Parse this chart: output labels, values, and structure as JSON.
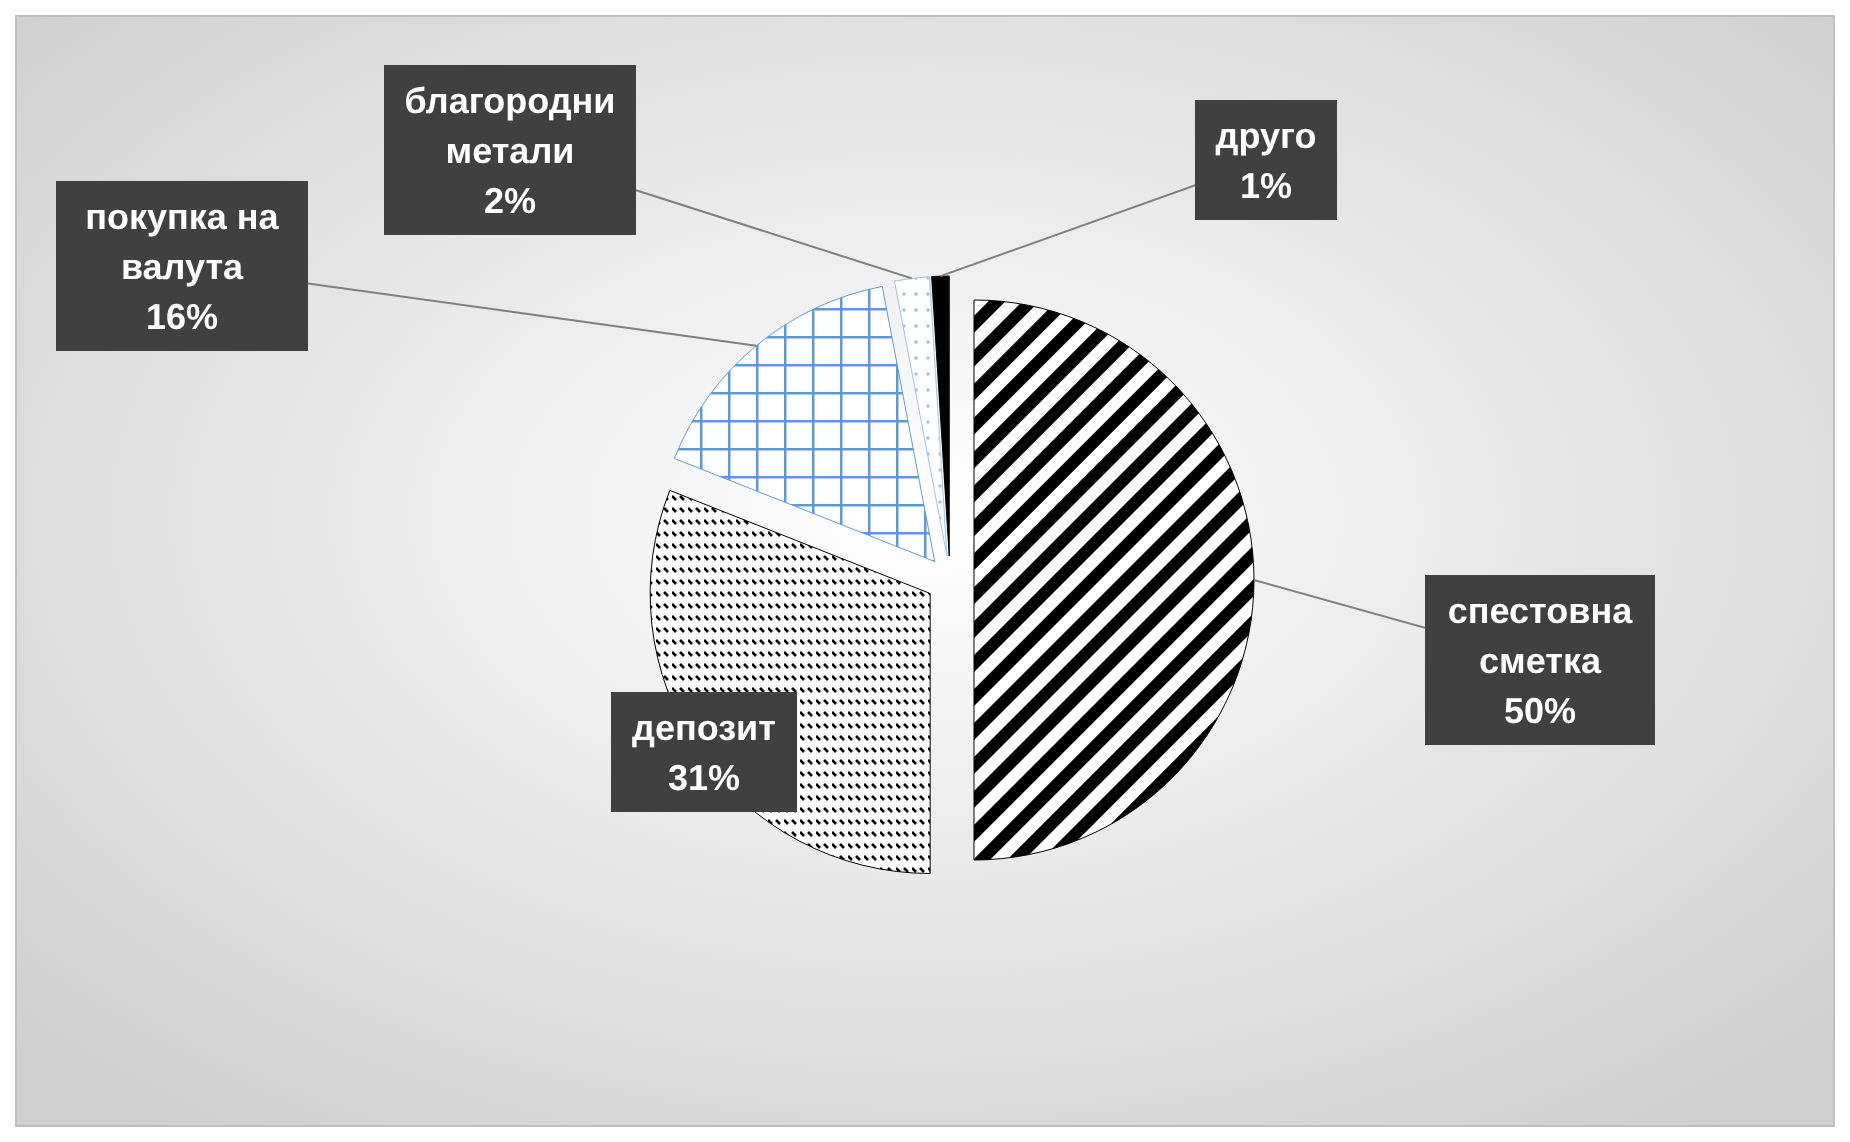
{
  "chart_data": {
    "type": "pie",
    "categories": [
      "спестовна сметка",
      "депозит",
      "покупка на валута",
      "благородни метали",
      "друго"
    ],
    "values": [
      50,
      31,
      16,
      2,
      1
    ],
    "colors": [
      "#000000",
      "#000000",
      "#5b9bd5",
      "#9dc3e6",
      "#000000"
    ],
    "value_labels": [
      "50%",
      "31%",
      "16%",
      "2%",
      "1%"
    ]
  }
}
